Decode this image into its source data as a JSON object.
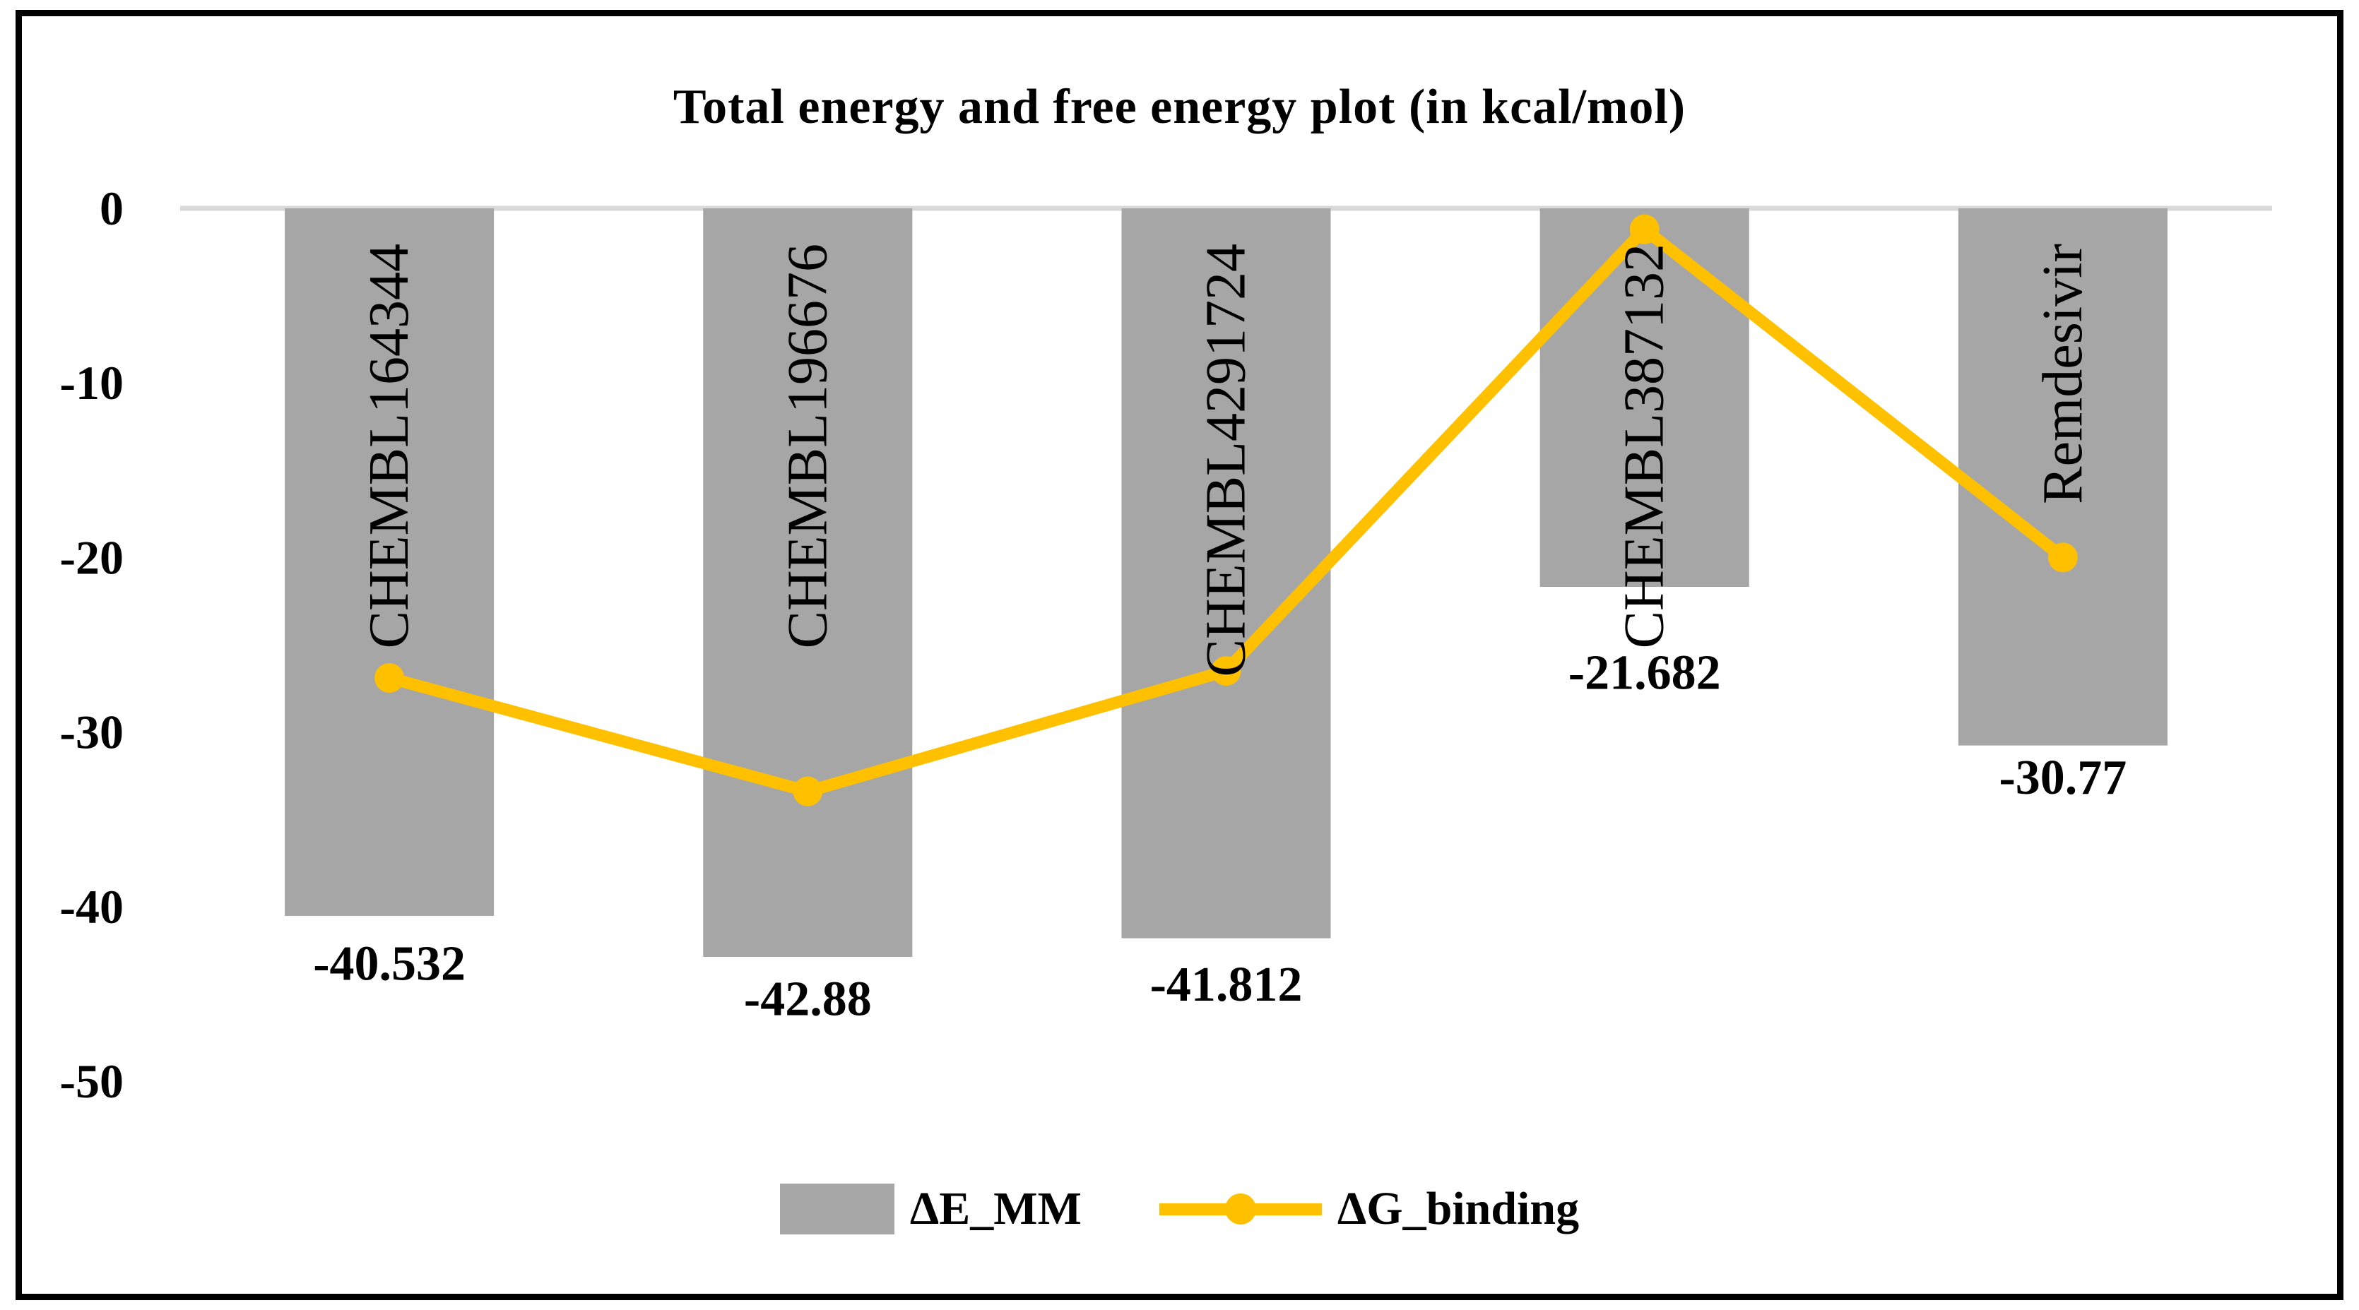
{
  "title": "Total energy and free energy plot (in kcal/mol)",
  "colors": {
    "bar": "#A6A6A6",
    "line": "#FFC000",
    "gridline": "#D9D9D9",
    "text": "#000000",
    "border": "#000000"
  },
  "y_axis": {
    "ticks": [
      0,
      -10,
      -20,
      -30,
      -40,
      -50
    ]
  },
  "legend": [
    {
      "label": "ΔE_MM",
      "type": "bar"
    },
    {
      "label": "ΔG_binding",
      "type": "line"
    }
  ],
  "chart_data": {
    "type": "bar+line combo",
    "title": "Total energy and free energy plot (in kcal/mol)",
    "xlabel": "",
    "ylabel": "",
    "ylim": [
      -50,
      0
    ],
    "grid": "single gridline at 0 only",
    "legend_position": "bottom center",
    "categories": [
      "CHEMBL164344",
      "CHEMBL196676",
      "CHEMBL4291724",
      "CHEMBL387132",
      "Remdesivir"
    ],
    "series": [
      {
        "name": "ΔE_MM",
        "type": "bar",
        "values": [
          -40.532,
          -42.88,
          -41.812,
          -21.682,
          -30.77
        ],
        "data_labels": [
          "-40.532",
          "-42.88",
          "-41.812",
          "-21.682",
          "-30.77"
        ],
        "color": "#A6A6A6"
      },
      {
        "name": "ΔG_binding",
        "type": "line",
        "values": [
          -26.9,
          -33.4,
          -26.5,
          -1.2,
          -20.0
        ],
        "color": "#FFC000",
        "marker": "circle"
      }
    ]
  }
}
